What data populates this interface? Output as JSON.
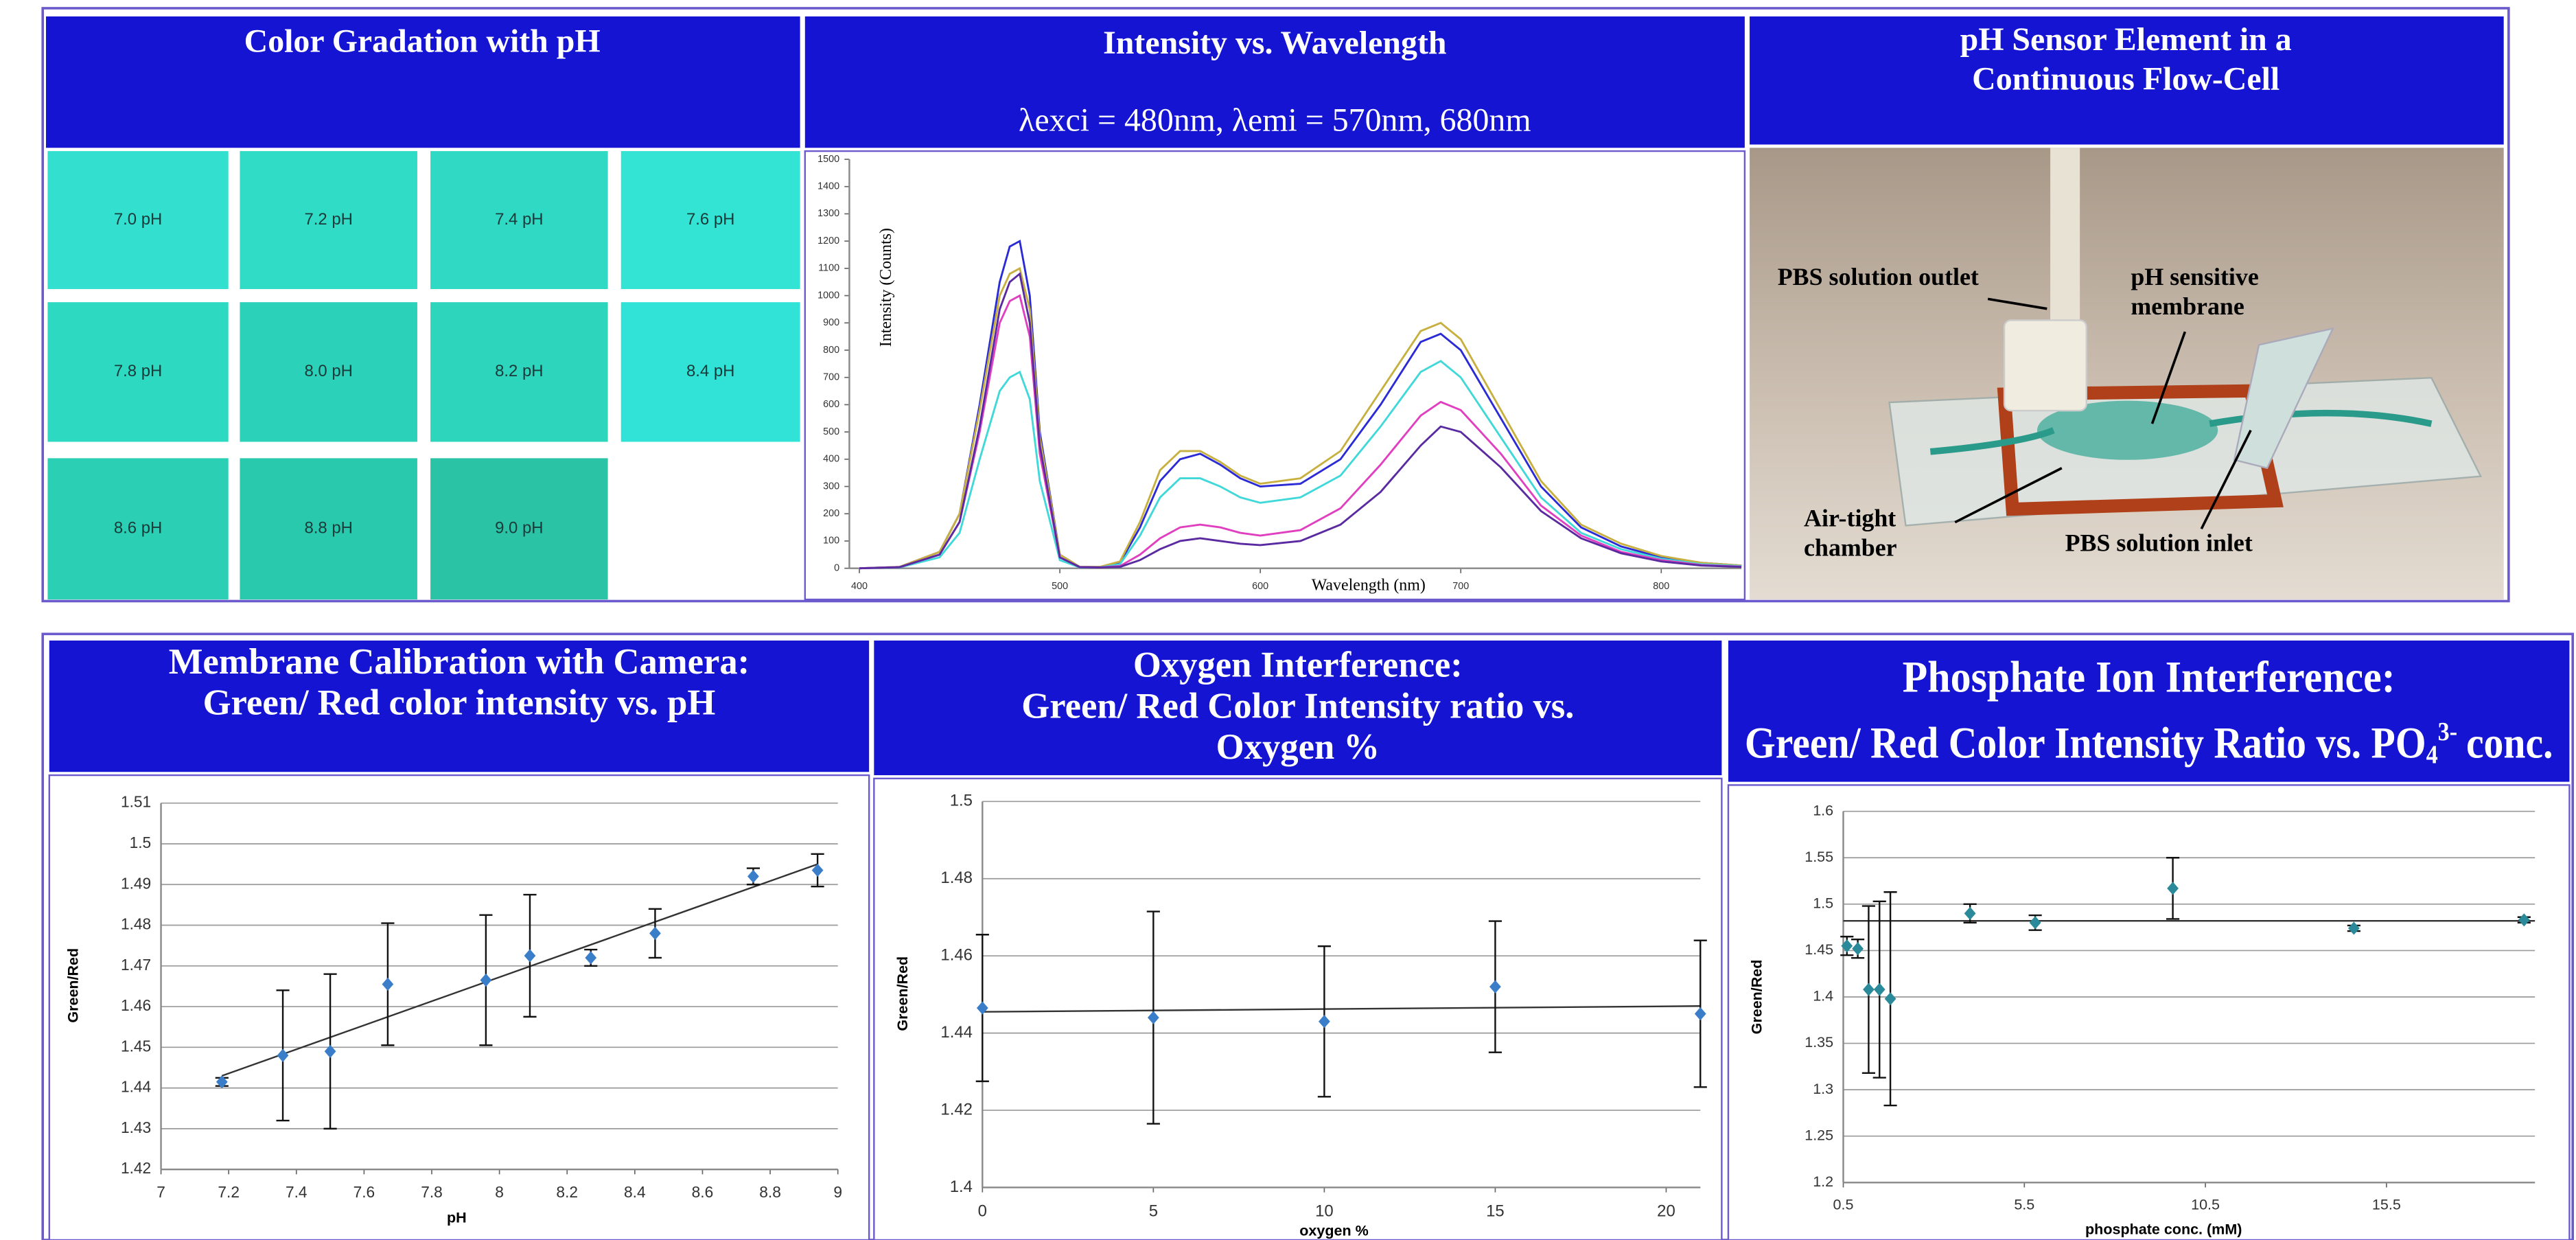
{
  "color_gradation": {
    "title": "Color Gradation with pH",
    "swatches": [
      {
        "label": "7.0 pH",
        "color": "#33e0cf"
      },
      {
        "label": "7.2 pH",
        "color": "#30dcc6"
      },
      {
        "label": "7.4 pH",
        "color": "#2fd9c4"
      },
      {
        "label": "7.6 pH",
        "color": "#33e3d3"
      },
      {
        "label": "7.8 pH",
        "color": "#2ed9c2"
      },
      {
        "label": "8.0 pH",
        "color": "#2bd1b8"
      },
      {
        "label": "8.2 pH",
        "color": "#2dd5bc"
      },
      {
        "label": "8.4 pH",
        "color": "#30e3d6"
      },
      {
        "label": "8.6 pH",
        "color": "#2acfb4"
      },
      {
        "label": "8.8 pH",
        "color": "#28c9ad"
      },
      {
        "label": "9.0 pH",
        "color": "#2ac3a5"
      }
    ]
  },
  "flow_cell": {
    "title": [
      "pH Sensor Element in a",
      "Continuous Flow-Cell"
    ],
    "labels": [
      [
        "PBS solution outlet"
      ],
      [
        "pH sensitive",
        "membrane"
      ],
      [
        "Air-tight",
        "chamber"
      ],
      [
        "PBS solution inlet"
      ]
    ]
  },
  "chart_data": [
    {
      "type": "line",
      "title": [
        "Intensity vs. Wavelength"
      ],
      "subtitle": "λexci = 480nm, λemi = 570nm, 680nm",
      "x_label": "Wavelength (nm)",
      "y_label": "Intensity (Counts)",
      "grid": false,
      "xlim": [
        395,
        840
      ],
      "ylim": [
        0,
        1500
      ],
      "xticks": [
        400,
        500,
        600,
        700,
        800
      ],
      "yticks": [
        0,
        100,
        200,
        300,
        400,
        500,
        600,
        700,
        800,
        900,
        1000,
        1100,
        1200,
        1300,
        1400,
        1500
      ],
      "x": [
        400,
        420,
        440,
        450,
        460,
        470,
        475,
        480,
        485,
        490,
        500,
        510,
        520,
        530,
        540,
        550,
        560,
        570,
        580,
        590,
        600,
        620,
        640,
        660,
        680,
        690,
        700,
        720,
        740,
        760,
        780,
        800,
        820,
        840
      ],
      "series": [
        {
          "color": "#2b2bd6",
          "values": [
            0,
            5,
            60,
            200,
            600,
            1050,
            1180,
            1200,
            1000,
            500,
            50,
            5,
            5,
            20,
            150,
            320,
            400,
            420,
            380,
            330,
            300,
            310,
            400,
            600,
            830,
            860,
            800,
            550,
            300,
            150,
            80,
            40,
            20,
            10
          ]
        },
        {
          "color": "#c8b040",
          "values": [
            0,
            5,
            60,
            200,
            580,
            1000,
            1080,
            1100,
            950,
            480,
            50,
            5,
            5,
            25,
            170,
            360,
            430,
            430,
            390,
            340,
            310,
            330,
            430,
            650,
            870,
            900,
            840,
            580,
            320,
            160,
            90,
            45,
            20,
            10
          ]
        },
        {
          "color": "#40d8d8",
          "values": [
            0,
            3,
            40,
            130,
            400,
            650,
            700,
            720,
            620,
            320,
            30,
            3,
            3,
            15,
            120,
            260,
            330,
            330,
            300,
            260,
            240,
            260,
            340,
            520,
            720,
            760,
            700,
            480,
            260,
            130,
            70,
            35,
            15,
            8
          ]
        },
        {
          "color": "#e040c0",
          "values": [
            0,
            4,
            50,
            170,
            500,
            900,
            980,
            1000,
            850,
            420,
            40,
            4,
            3,
            8,
            50,
            110,
            150,
            160,
            150,
            130,
            120,
            140,
            220,
            380,
            560,
            610,
            580,
            420,
            230,
            120,
            60,
            30,
            12,
            6
          ]
        },
        {
          "color": "#5a2aa0",
          "values": [
            0,
            4,
            50,
            170,
            520,
            950,
            1050,
            1080,
            900,
            450,
            40,
            4,
            3,
            5,
            30,
            70,
            100,
            110,
            100,
            90,
            85,
            100,
            160,
            280,
            450,
            520,
            500,
            370,
            210,
            110,
            55,
            25,
            10,
            5
          ]
        }
      ]
    },
    {
      "type": "scatter",
      "title": [
        "Membrane Calibration with Camera:",
        "Green/ Red color intensity vs. pH"
      ],
      "x_label": "pH",
      "y_label": "Green/Red",
      "grid": true,
      "color": "#3a7dc8",
      "xlim": [
        7,
        9
      ],
      "ylim": [
        1.42,
        1.51
      ],
      "xticks": [
        7,
        7.2,
        7.4,
        7.6,
        7.8,
        8,
        8.2,
        8.4,
        8.6,
        8.8,
        9
      ],
      "yticks": [
        1.42,
        1.43,
        1.44,
        1.45,
        1.46,
        1.47,
        1.48,
        1.49,
        1.5,
        1.51
      ],
      "x": [
        7.18,
        7.36,
        7.5,
        7.67,
        7.96,
        8.09,
        8.27,
        8.46,
        8.75,
        8.94
      ],
      "values": [
        1.4415,
        1.448,
        1.449,
        1.4655,
        1.4665,
        1.4725,
        1.472,
        1.478,
        1.492,
        1.4935
      ],
      "errors": [
        0.001,
        0.016,
        0.019,
        0.015,
        0.016,
        0.015,
        0.002,
        0.006,
        0.002,
        0.004
      ],
      "trendline": {
        "x": [
          7.18,
          8.94
        ],
        "values": [
          1.443,
          1.495
        ]
      }
    },
    {
      "type": "scatter",
      "title": [
        "Oxygen Interference:",
        "Green/ Red Color Intensity ratio vs.",
        "Oxygen %"
      ],
      "x_label": "oxygen %",
      "y_label": "Green/Red",
      "grid": true,
      "color": "#3a7dc8",
      "xlim": [
        0,
        21
      ],
      "ylim": [
        1.4,
        1.5
      ],
      "xticks": [
        0,
        5,
        10,
        15,
        20
      ],
      "yticks": [
        1.4,
        1.42,
        1.44,
        1.46,
        1.48,
        1.5
      ],
      "x": [
        0,
        5,
        10,
        15,
        21
      ],
      "values": [
        1.4465,
        1.444,
        1.443,
        1.452,
        1.445
      ],
      "errors": [
        0.019,
        0.0275,
        0.0195,
        0.017,
        0.019
      ],
      "trendline": {
        "x": [
          0,
          21
        ],
        "values": [
          1.4455,
          1.447
        ]
      }
    },
    {
      "type": "scatter",
      "title": [
        "Phosphate Ion Interference:",
        "Green/ Red Color Intensity Ratio vs. PO"
      ],
      "title_sub": "4",
      "title_sup": "3-",
      "title_tail": "conc.",
      "x_label": "phosphate conc. (mM)",
      "y_label": "Green/Red",
      "grid": true,
      "color": "#2a8a9a",
      "xlim": [
        0.5,
        19.6
      ],
      "ylim": [
        1.2,
        1.6
      ],
      "xticks": [
        0.5,
        5.5,
        10.5,
        15.5
      ],
      "yticks": [
        1.2,
        1.25,
        1.3,
        1.35,
        1.4,
        1.45,
        1.5,
        1.55,
        1.6
      ],
      "x": [
        0.6,
        0.9,
        1.2,
        1.5,
        1.8,
        4,
        5.8,
        9.6,
        14.6,
        19.3
      ],
      "values": [
        1.455,
        1.452,
        1.408,
        1.408,
        1.398,
        1.49,
        1.48,
        1.517,
        1.474,
        1.483
      ],
      "errors": [
        0.01,
        0.01,
        0.09,
        0.095,
        0.115,
        0.01,
        0.008,
        0.033,
        0.003,
        0.003
      ],
      "trendline": {
        "x": [
          0.5,
          19.6
        ],
        "values": [
          1.482,
          1.482
        ]
      }
    }
  ]
}
